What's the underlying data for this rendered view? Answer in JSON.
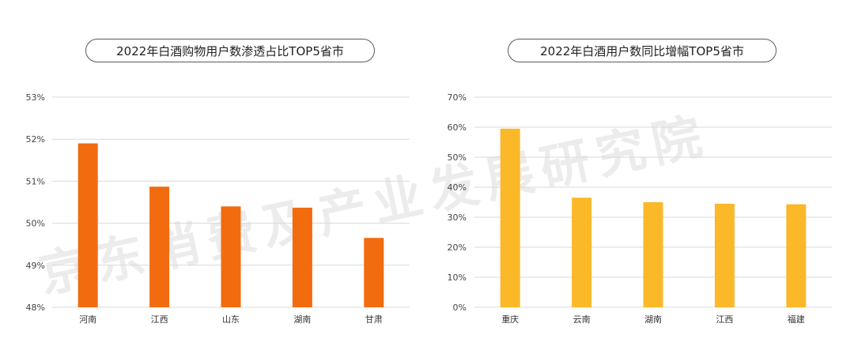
{
  "watermark": "京东消费及产业发展研究院",
  "chart_data": [
    {
      "type": "bar",
      "title": "2022年白酒购物用户数渗透占比TOP5省市",
      "categories": [
        "河南",
        "江西",
        "山东",
        "湖南",
        "甘肃"
      ],
      "values": [
        51.9,
        50.87,
        50.4,
        50.37,
        49.65
      ],
      "ylim": [
        48,
        53
      ],
      "yticks": [
        48,
        49,
        50,
        51,
        52,
        53
      ],
      "tick_suffix": "%",
      "color": "#f26b0f",
      "grid": true
    },
    {
      "type": "bar",
      "title": "2022年白酒用户数同比增幅TOP5省市",
      "categories": [
        "重庆",
        "云南",
        "湖南",
        "江西",
        "福建"
      ],
      "values": [
        59.5,
        36.5,
        35.0,
        34.5,
        34.3
      ],
      "ylim": [
        0,
        70
      ],
      "yticks": [
        0,
        10,
        20,
        30,
        40,
        50,
        60,
        70
      ],
      "tick_suffix": "%",
      "color": "#fbb829",
      "grid": true
    }
  ]
}
